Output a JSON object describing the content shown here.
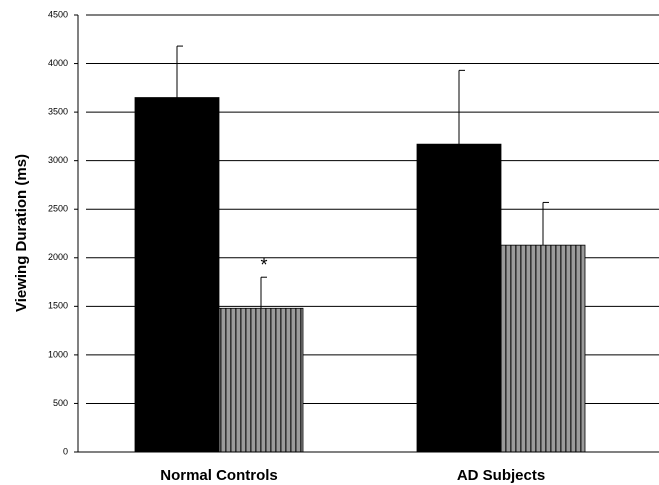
{
  "chart_data": {
    "type": "bar",
    "y_label": "Viewing Duration (ms)",
    "categories": [
      "Normal Controls",
      "AD Subjects"
    ],
    "series": [
      {
        "color": "#000000",
        "values": [
          3650,
          3170
        ],
        "errors": [
          530,
          760
        ]
      },
      {
        "color": "#9a9a9a",
        "pattern": "vertical-stripes",
        "values": [
          1480,
          2130
        ],
        "errors": [
          320,
          440
        ]
      }
    ],
    "annotation": "*",
    "ylim": [
      0,
      4500
    ],
    "yticks": [
      0,
      500,
      1000,
      1500,
      2000,
      2500,
      3000,
      3500,
      4000,
      4500
    ],
    "grid": true
  }
}
